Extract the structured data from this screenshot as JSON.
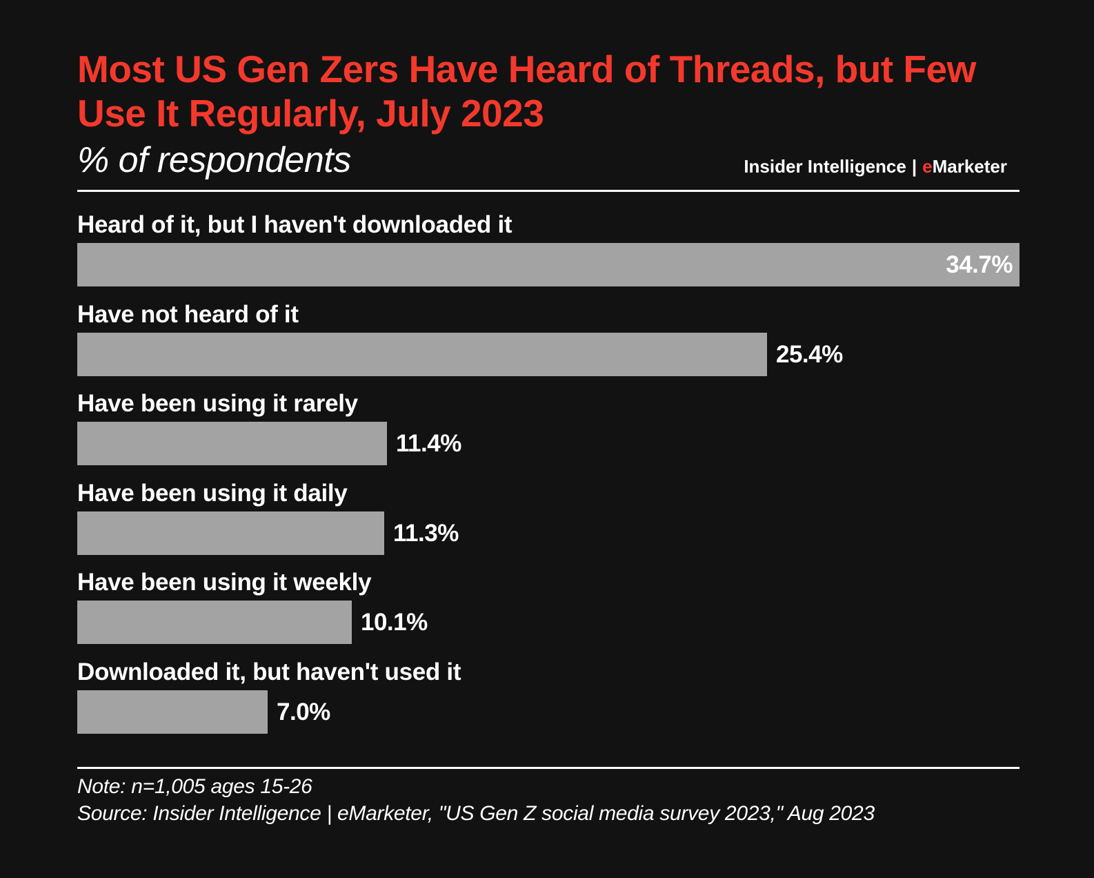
{
  "header": {
    "title_line1": "Most US Gen Zers Have Heard of Threads, but Few",
    "title_line2": "Use It Regularly, July 2023",
    "subtitle": "% of respondents"
  },
  "brand": {
    "left": "Insider Intelligence",
    "separator": "|",
    "accent_letter": "e",
    "right": "Marketer"
  },
  "colors": {
    "background": "#121212",
    "accent": "#F4392C",
    "bar": "#A3A3A3",
    "text": "#FFFFFF"
  },
  "chart_data": {
    "type": "bar",
    "orientation": "horizontal",
    "title": "Most US Gen Zers Have Heard of Threads, but Few Use It Regularly, July 2023",
    "subtitle": "% of respondents",
    "categories": [
      "Heard of it, but I haven't downloaded it",
      "Have not heard of it",
      "Have been using it rarely",
      "Have been using it daily",
      "Have been using it weekly",
      "Downloaded it, but haven't used it"
    ],
    "values": [
      34.7,
      25.4,
      11.4,
      11.3,
      10.1,
      7.0
    ],
    "value_labels": [
      "34.7%",
      "25.4%",
      "11.4%",
      "11.3%",
      "10.1%",
      "7.0%"
    ],
    "xlim": [
      0,
      34.7
    ],
    "xlabel": "",
    "ylabel": "",
    "grid": false,
    "legend": "none"
  },
  "footer": {
    "note": "Note: n=1,005 ages 15-26",
    "source": "Source: Insider Intelligence | eMarketer, \"US Gen Z social media survey 2023,\" Aug 2023"
  }
}
